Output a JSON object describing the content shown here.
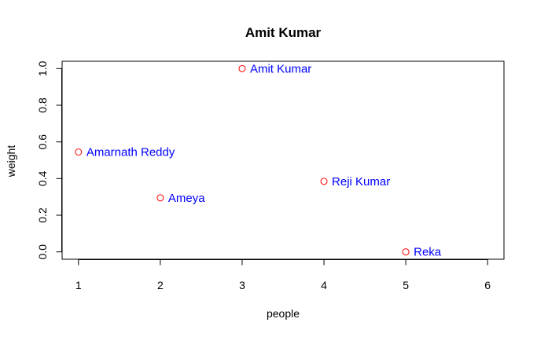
{
  "chart_data": {
    "type": "scatter",
    "title": "Amit Kumar",
    "xlabel": "people",
    "ylabel": "weight",
    "xlim": [
      0.8,
      6.2
    ],
    "ylim": [
      -0.04,
      1.04
    ],
    "x_ticks": [
      1,
      2,
      3,
      4,
      5,
      6
    ],
    "y_ticks": [
      "0.0",
      "0.2",
      "0.4",
      "0.6",
      "0.8",
      "1.0"
    ],
    "point_color": "#ff0000",
    "label_color": "#0000ff",
    "points": [
      {
        "x": 1,
        "y": 0.545,
        "label": "Amarnath Reddy"
      },
      {
        "x": 2,
        "y": 0.295,
        "label": "Ameya"
      },
      {
        "x": 3,
        "y": 1.0,
        "label": "Amit Kumar"
      },
      {
        "x": 4,
        "y": 0.385,
        "label": "Reji Kumar"
      },
      {
        "x": 5,
        "y": 0.0,
        "label": "Reka"
      }
    ]
  }
}
